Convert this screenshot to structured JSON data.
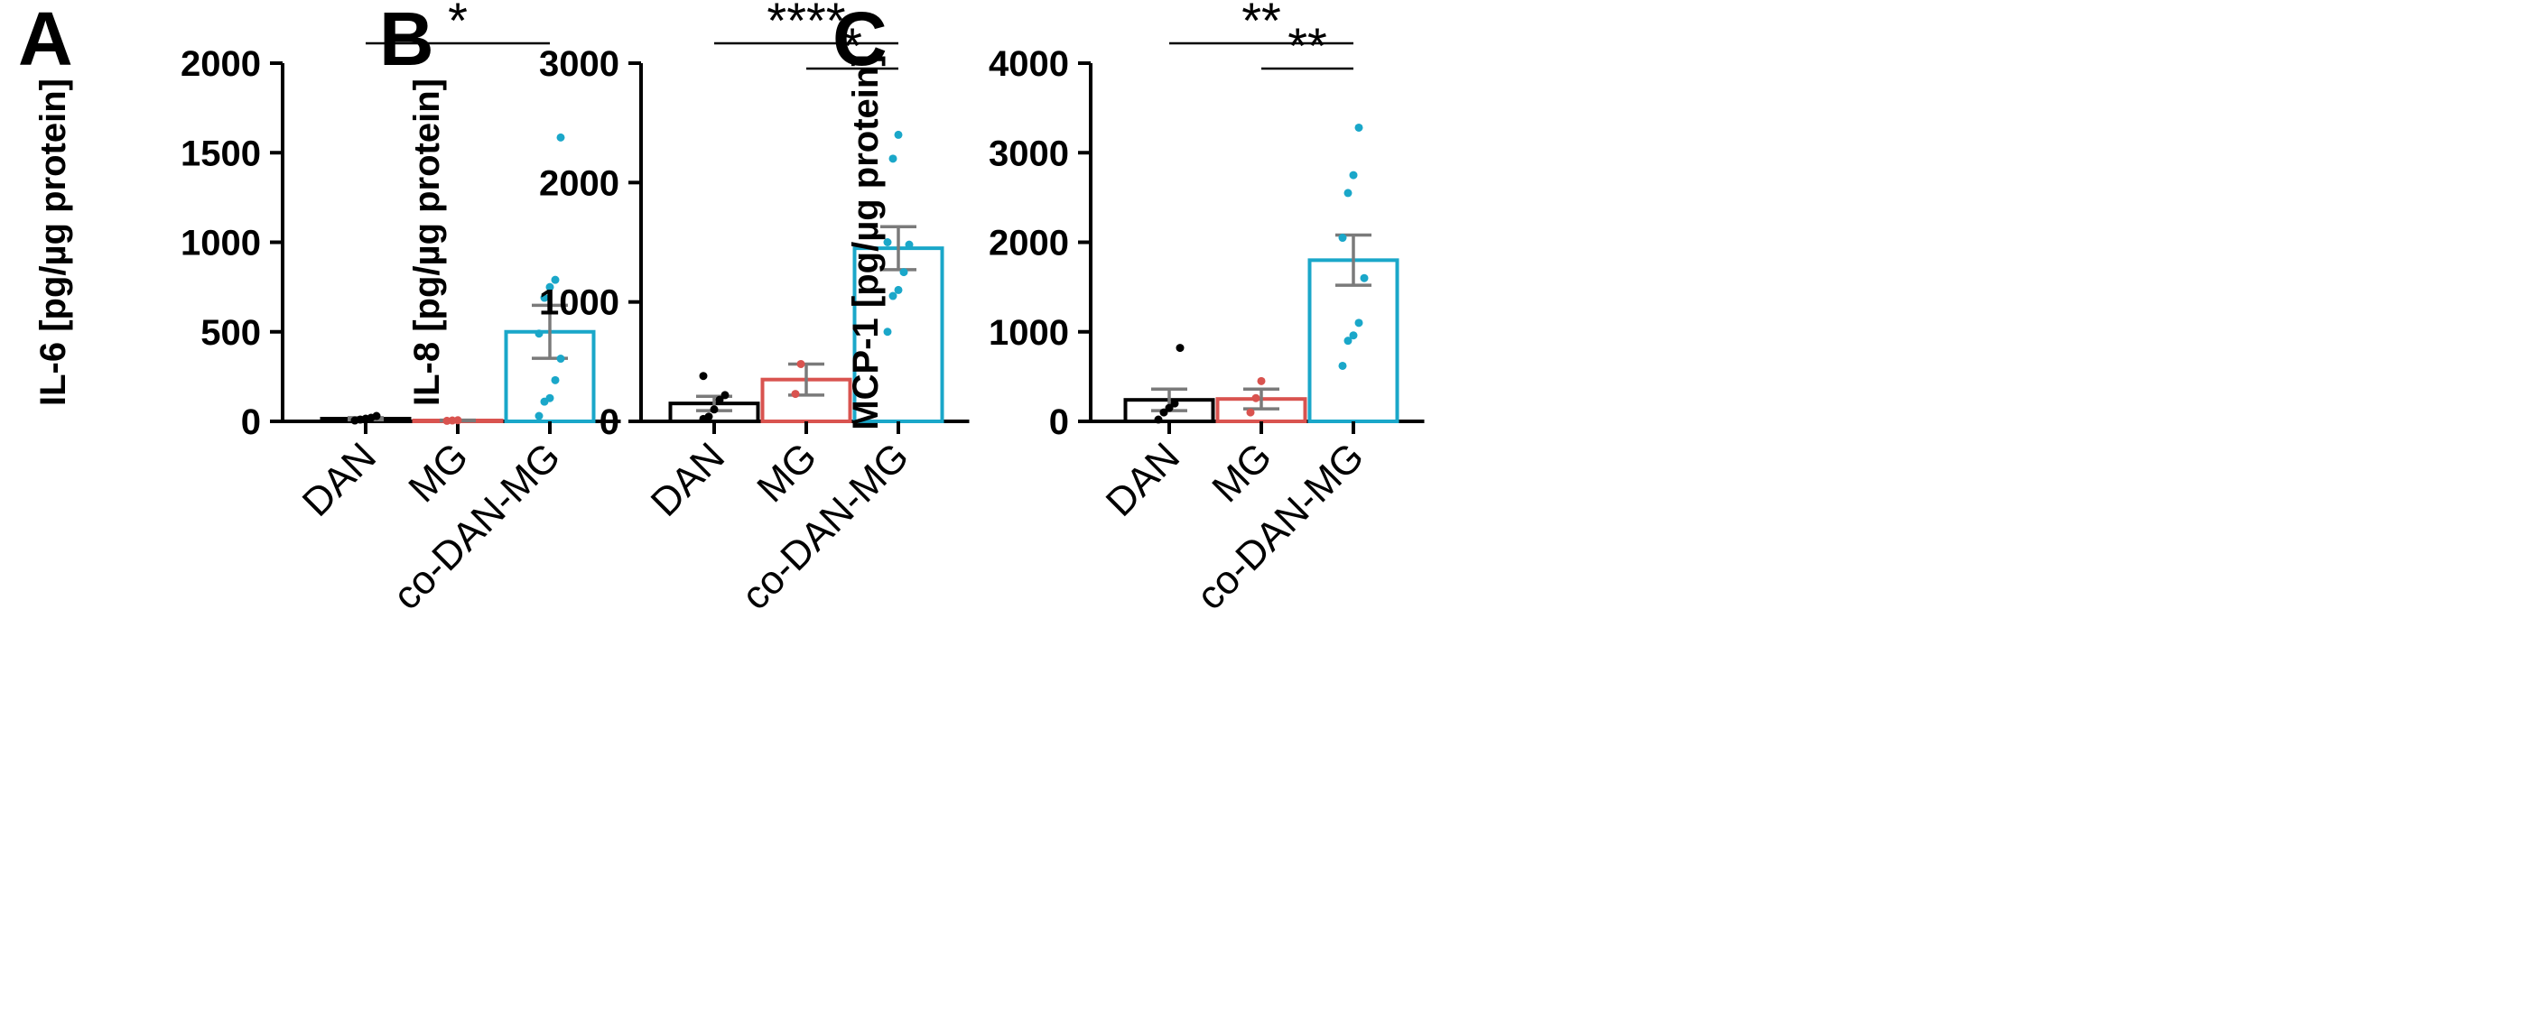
{
  "chart_data": [
    {
      "type": "bar",
      "panel_label": "A",
      "ylabel": "IL-6 [pg/µg protein]",
      "ylim": [
        0,
        2000
      ],
      "yticks": [
        0,
        500,
        1000,
        1500,
        2000
      ],
      "categories": [
        "DAN",
        "MG",
        "co-DAN-MG"
      ],
      "values": [
        15,
        5,
        500
      ],
      "sem": [
        6,
        2,
        148
      ],
      "colors": [
        "#000000",
        "#d9534f",
        "#1aa7c9"
      ],
      "points": [
        [
          5,
          10,
          15,
          20,
          30
        ],
        [
          3,
          5,
          6
        ],
        [
          30,
          110,
          130,
          230,
          350,
          490,
          690,
          750,
          790,
          1585
        ]
      ],
      "significance": [
        {
          "from": 0,
          "to": 2,
          "label": "*"
        }
      ]
    },
    {
      "type": "bar",
      "panel_label": "B",
      "ylabel": "IL-8 [pg/µg protein]",
      "ylim": [
        0,
        3000
      ],
      "yticks": [
        0,
        1000,
        2000,
        3000
      ],
      "categories": [
        "DAN",
        "MG",
        "co-DAN-MG"
      ],
      "values": [
        150,
        350,
        1450
      ],
      "sem": [
        60,
        130,
        180
      ],
      "colors": [
        "#000000",
        "#d9534f",
        "#1aa7c9"
      ],
      "points": [
        [
          20,
          40,
          100,
          180,
          220,
          380
        ],
        [
          230,
          480
        ],
        [
          750,
          1050,
          1100,
          1250,
          1480,
          1500,
          2200,
          2400
        ]
      ],
      "significance": [
        {
          "from": 0,
          "to": 2,
          "label": "****"
        },
        {
          "from": 1,
          "to": 2,
          "label": "*"
        }
      ]
    },
    {
      "type": "bar",
      "panel_label": "C",
      "ylabel": "MCP-1 [pg/µg protein]",
      "ylim": [
        0,
        4000
      ],
      "yticks": [
        0,
        1000,
        2000,
        3000,
        4000
      ],
      "categories": [
        "DAN",
        "MG",
        "co-DAN-MG"
      ],
      "values": [
        240,
        250,
        1800
      ],
      "sem": [
        120,
        110,
        280
      ],
      "colors": [
        "#000000",
        "#d9534f",
        "#1aa7c9"
      ],
      "points": [
        [
          20,
          100,
          150,
          200,
          820
        ],
        [
          100,
          260,
          450
        ],
        [
          620,
          900,
          960,
          1100,
          1600,
          2050,
          2550,
          2750,
          3280
        ]
      ],
      "significance": [
        {
          "from": 0,
          "to": 2,
          "label": "**"
        },
        {
          "from": 1,
          "to": 2,
          "label": "**"
        }
      ]
    }
  ]
}
